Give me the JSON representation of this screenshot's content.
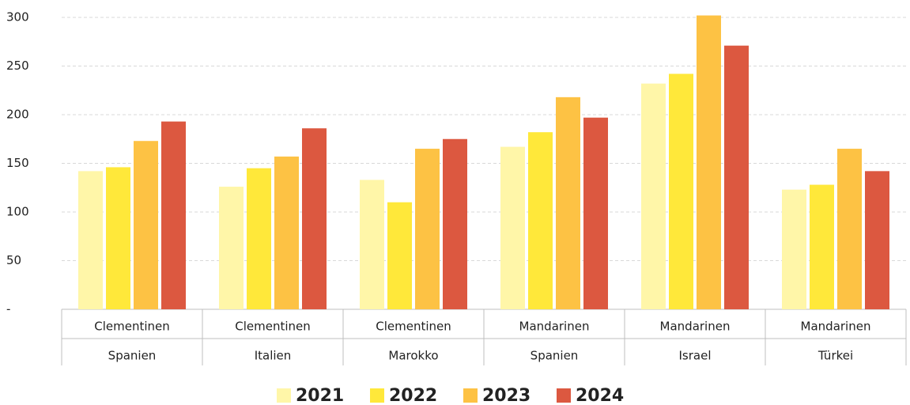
{
  "chart_data": {
    "type": "bar",
    "categories": [
      [
        "Clementinen",
        "Spanien"
      ],
      [
        "Clementinen",
        "Italien"
      ],
      [
        "Clementinen",
        "Marokko"
      ],
      [
        "Mandarinen",
        "Spanien"
      ],
      [
        "Mandarinen",
        "Israel"
      ],
      [
        "Mandarinen",
        "Türkei"
      ]
    ],
    "series": [
      {
        "name": "2021",
        "color": "#fff6a8",
        "values": [
          142,
          126,
          133,
          167,
          232,
          123
        ]
      },
      {
        "name": "2022",
        "color": "#ffe83a",
        "values": [
          146,
          145,
          110,
          182,
          242,
          128
        ]
      },
      {
        "name": "2023",
        "color": "#fdc244",
        "values": [
          173,
          157,
          165,
          218,
          302,
          165
        ]
      },
      {
        "name": "2024",
        "color": "#dc5840",
        "values": [
          193,
          186,
          175,
          197,
          271,
          142
        ]
      }
    ],
    "ylim": [
      0,
      300
    ],
    "yticks": [
      {
        "value": 0,
        "label": "-"
      },
      50,
      100,
      150,
      200,
      250,
      300
    ],
    "grid": true,
    "legend": "bottom"
  }
}
